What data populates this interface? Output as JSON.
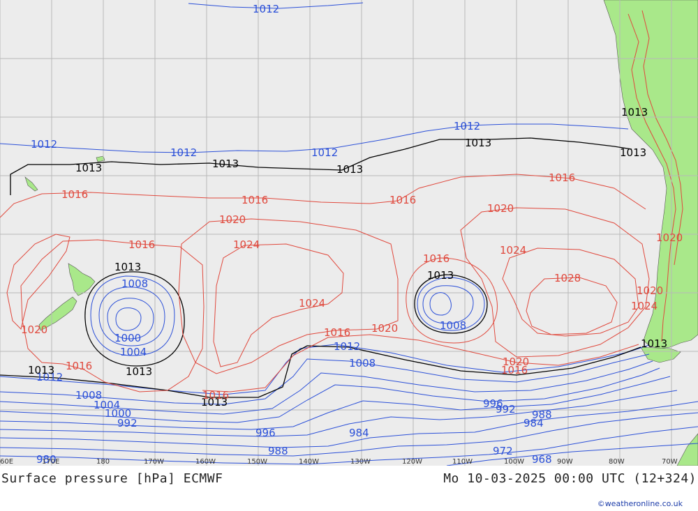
{
  "colors": {
    "ocean": "#ececec",
    "land": "#a9e88a",
    "grid": "#b8b8b8",
    "high_isobar": "#e0483c",
    "low_isobar": "#2a4fd8",
    "reference_isobar": "#000000",
    "mountain": "#e0483c"
  },
  "lon_ticks": [
    "60E",
    "170E",
    "180",
    "170W",
    "160W",
    "150W",
    "140W",
    "130W",
    "120W",
    "110W",
    "100W",
    "90W",
    "80W",
    "70W"
  ],
  "isobar_labels": [
    {
      "text": "1012",
      "color": "blue"
    },
    {
      "text": "1012",
      "color": "blue"
    },
    {
      "text": "1012",
      "color": "blue"
    },
    {
      "text": "1012",
      "color": "blue"
    },
    {
      "text": "1012",
      "color": "blue"
    },
    {
      "text": "1012",
      "color": "blue"
    },
    {
      "text": "1012",
      "color": "blue"
    },
    {
      "text": "1013",
      "color": "black"
    },
    {
      "text": "1013",
      "color": "black"
    },
    {
      "text": "1013",
      "color": "black"
    },
    {
      "text": "1013",
      "color": "black"
    },
    {
      "text": "1013",
      "color": "black"
    },
    {
      "text": "1013",
      "color": "black"
    },
    {
      "text": "1013",
      "color": "black"
    },
    {
      "text": "1013",
      "color": "black"
    },
    {
      "text": "1013",
      "color": "black"
    },
    {
      "text": "1013",
      "color": "black"
    },
    {
      "text": "1013",
      "color": "black"
    },
    {
      "text": "1013",
      "color": "black"
    },
    {
      "text": "1016",
      "color": "red"
    },
    {
      "text": "1016",
      "color": "red"
    },
    {
      "text": "1016",
      "color": "red"
    },
    {
      "text": "1016",
      "color": "red"
    },
    {
      "text": "1016",
      "color": "red"
    },
    {
      "text": "1016",
      "color": "red"
    },
    {
      "text": "1016",
      "color": "red"
    },
    {
      "text": "1016",
      "color": "red"
    },
    {
      "text": "1016",
      "color": "red"
    },
    {
      "text": "1016",
      "color": "red"
    },
    {
      "text": "1020",
      "color": "red"
    },
    {
      "text": "1020",
      "color": "red"
    },
    {
      "text": "1020",
      "color": "red"
    },
    {
      "text": "1020",
      "color": "red"
    },
    {
      "text": "1020",
      "color": "red"
    },
    {
      "text": "1020",
      "color": "red"
    },
    {
      "text": "1020",
      "color": "red"
    },
    {
      "text": "1024",
      "color": "red"
    },
    {
      "text": "1024",
      "color": "red"
    },
    {
      "text": "1024",
      "color": "red"
    },
    {
      "text": "1024",
      "color": "red"
    },
    {
      "text": "1028",
      "color": "red"
    },
    {
      "text": "1008",
      "color": "blue"
    },
    {
      "text": "1008",
      "color": "blue"
    },
    {
      "text": "1008",
      "color": "blue"
    },
    {
      "text": "1008",
      "color": "blue"
    },
    {
      "text": "1004",
      "color": "blue"
    },
    {
      "text": "1004",
      "color": "blue"
    },
    {
      "text": "1000",
      "color": "blue"
    },
    {
      "text": "1000",
      "color": "blue"
    },
    {
      "text": "996",
      "color": "blue"
    },
    {
      "text": "996",
      "color": "blue"
    },
    {
      "text": "992",
      "color": "blue"
    },
    {
      "text": "992",
      "color": "blue"
    },
    {
      "text": "988",
      "color": "blue"
    },
    {
      "text": "988",
      "color": "blue"
    },
    {
      "text": "984",
      "color": "blue"
    },
    {
      "text": "984",
      "color": "blue"
    },
    {
      "text": "980",
      "color": "blue"
    },
    {
      "text": "972",
      "color": "blue"
    },
    {
      "text": "968",
      "color": "blue"
    }
  ],
  "footer": {
    "title": "Surface pressure [hPa] ECMWF",
    "date": "Mo 10-03-2025 00:00 UTC (12+324)",
    "credit": "©weatheronline.co.uk"
  }
}
